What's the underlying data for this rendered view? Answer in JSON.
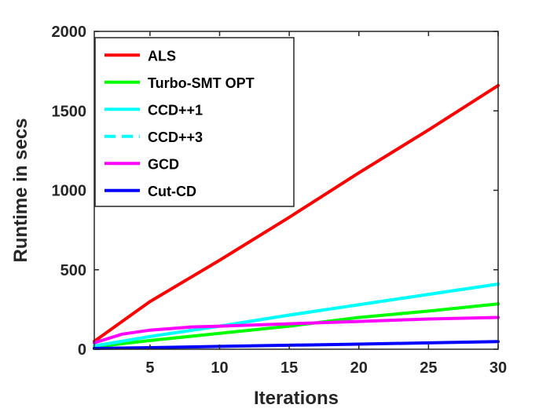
{
  "chart_data": {
    "type": "line",
    "title": "",
    "xlabel": "Iterations",
    "ylabel": "Runtime in secs",
    "xlim": [
      1,
      30
    ],
    "ylim": [
      0,
      2000
    ],
    "x_ticks": [
      5,
      10,
      15,
      20,
      25,
      30
    ],
    "y_ticks": [
      0,
      500,
      1000,
      1500,
      2000
    ],
    "legend_position": "top-left",
    "grid": false,
    "series": [
      {
        "name": "ALS",
        "color": "#ff0000",
        "dash": "solid",
        "x": [
          1,
          5,
          10,
          15,
          20,
          25,
          30
        ],
        "y": [
          50,
          300,
          560,
          830,
          1110,
          1380,
          1660
        ]
      },
      {
        "name": "Turbo-SMT OPT",
        "color": "#00ff00",
        "dash": "solid",
        "x": [
          1,
          5,
          10,
          15,
          20,
          25,
          30
        ],
        "y": [
          15,
          55,
          100,
          145,
          200,
          240,
          285
        ]
      },
      {
        "name": "CCD++1",
        "color": "#00ffff",
        "dash": "solid",
        "x": [
          1,
          5,
          10,
          15,
          20,
          25,
          30
        ],
        "y": [
          20,
          80,
          145,
          215,
          280,
          345,
          410
        ]
      },
      {
        "name": "CCD++3",
        "color": "#00ffff",
        "dash": "dashed",
        "x": [
          1,
          5,
          10,
          15,
          20,
          25,
          30
        ],
        "y": [
          20,
          80,
          145,
          215,
          280,
          345,
          410
        ]
      },
      {
        "name": "GCD",
        "color": "#ff00ff",
        "dash": "solid",
        "x": [
          1,
          3,
          5,
          8,
          10,
          15,
          20,
          25,
          30
        ],
        "y": [
          40,
          95,
          120,
          140,
          145,
          160,
          175,
          190,
          200
        ]
      },
      {
        "name": "Cut-CD",
        "color": "#0000ff",
        "dash": "solid",
        "x": [
          1,
          5,
          10,
          15,
          20,
          25,
          30
        ],
        "y": [
          5,
          10,
          18,
          25,
          32,
          40,
          48
        ]
      }
    ]
  }
}
